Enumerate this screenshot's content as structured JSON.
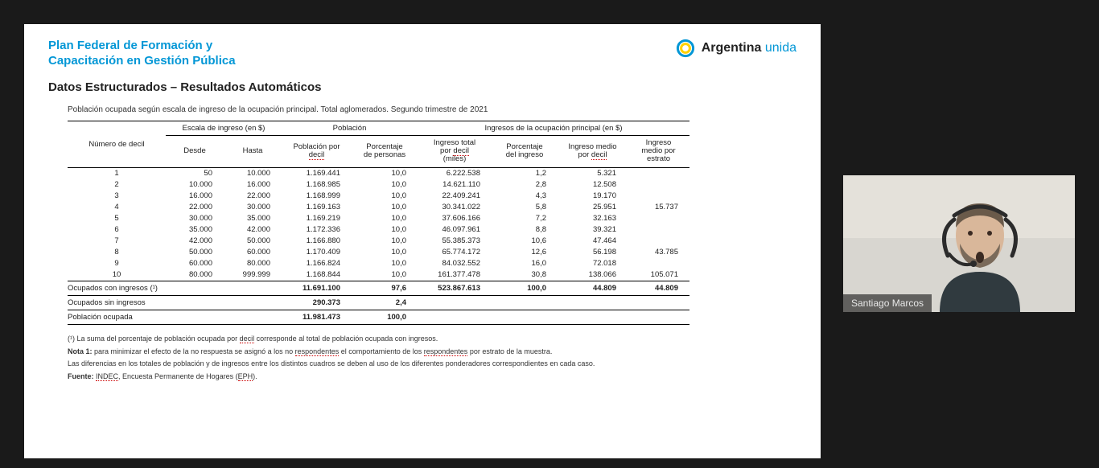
{
  "brand": {
    "left_line1": "Plan Federal de Formación y",
    "left_line2": "Capacitación en Gestión Pública",
    "right_label_strong": "Argentina",
    "right_label_light": "unida",
    "ring_outer": "#0397d6",
    "ring_inner": "#ffd100",
    "ring_core": "#ffffff"
  },
  "section_title": "Datos Estructurados – Resultados Automáticos",
  "table": {
    "caption": "Población ocupada según escala de ingreso de la ocupación principal. Total aglomerados. Segundo trimestre de 2021",
    "group_headers": {
      "g0": "Número de decil",
      "g1": "Escala de ingreso (en $)",
      "g2": "Población",
      "g3": "Ingresos de la ocupación principal (en $)"
    },
    "col_headers": {
      "c1": "Desde",
      "c2": "Hasta",
      "c3": "Población por decil",
      "c4": "Porcentaje de personas",
      "c5": "Ingreso total por decil (miles)",
      "c6": "Porcentaje del ingreso",
      "c7": "Ingreso medio por decil",
      "c8": "Ingreso medio por estrato"
    },
    "rows": [
      {
        "d": "1",
        "desde": "50",
        "hasta": "10.000",
        "pob": "1.169.441",
        "pct": "10,0",
        "ing_tot": "6.222.538",
        "pct_ing": "1,2",
        "ing_med": "5.321",
        "estrato": ""
      },
      {
        "d": "2",
        "desde": "10.000",
        "hasta": "16.000",
        "pob": "1.168.985",
        "pct": "10,0",
        "ing_tot": "14.621.110",
        "pct_ing": "2,8",
        "ing_med": "12.508",
        "estrato": ""
      },
      {
        "d": "3",
        "desde": "16.000",
        "hasta": "22.000",
        "pob": "1.168.999",
        "pct": "10,0",
        "ing_tot": "22.409.241",
        "pct_ing": "4,3",
        "ing_med": "19.170",
        "estrato": ""
      },
      {
        "d": "4",
        "desde": "22.000",
        "hasta": "30.000",
        "pob": "1.169.163",
        "pct": "10,0",
        "ing_tot": "30.341.022",
        "pct_ing": "5,8",
        "ing_med": "25.951",
        "estrato": "15.737"
      },
      {
        "d": "5",
        "desde": "30.000",
        "hasta": "35.000",
        "pob": "1.169.219",
        "pct": "10,0",
        "ing_tot": "37.606.166",
        "pct_ing": "7,2",
        "ing_med": "32.163",
        "estrato": ""
      },
      {
        "d": "6",
        "desde": "35.000",
        "hasta": "42.000",
        "pob": "1.172.336",
        "pct": "10,0",
        "ing_tot": "46.097.961",
        "pct_ing": "8,8",
        "ing_med": "39.321",
        "estrato": ""
      },
      {
        "d": "7",
        "desde": "42.000",
        "hasta": "50.000",
        "pob": "1.166.880",
        "pct": "10,0",
        "ing_tot": "55.385.373",
        "pct_ing": "10,6",
        "ing_med": "47.464",
        "estrato": ""
      },
      {
        "d": "8",
        "desde": "50.000",
        "hasta": "60.000",
        "pob": "1.170.409",
        "pct": "10,0",
        "ing_tot": "65.774.172",
        "pct_ing": "12,6",
        "ing_med": "56.198",
        "estrato": "43.785"
      },
      {
        "d": "9",
        "desde": "60.000",
        "hasta": "80.000",
        "pob": "1.166.824",
        "pct": "10,0",
        "ing_tot": "84.032.552",
        "pct_ing": "16,0",
        "ing_med": "72.018",
        "estrato": ""
      },
      {
        "d": "10",
        "desde": "80.000",
        "hasta": "999.999",
        "pob": "1.168.844",
        "pct": "10,0",
        "ing_tot": "161.377.478",
        "pct_ing": "30,8",
        "ing_med": "138.066",
        "estrato": "105.071"
      }
    ],
    "summaries": [
      {
        "label": "Ocupados con ingresos (¹)",
        "pob": "11.691.100",
        "pct": "97,6",
        "ing_tot": "523.867.613",
        "pct_ing": "100,0",
        "ing_med": "44.809",
        "estrato": "44.809"
      },
      {
        "label": "Ocupados sin ingresos",
        "pob": "290.373",
        "pct": "2,4",
        "ing_tot": "",
        "pct_ing": "",
        "ing_med": "",
        "estrato": ""
      },
      {
        "label": "Población ocupada",
        "pob": "11.981.473",
        "pct": "100,0",
        "ing_tot": "",
        "pct_ing": "",
        "ing_med": "",
        "estrato": ""
      }
    ]
  },
  "footnotes": {
    "n1": "(¹) La suma del porcentaje de población ocupada por decil corresponde al total de población ocupada con ingresos.",
    "n2a": "Nota 1:",
    "n2b": " para minimizar el efecto de la no respuesta se asignó a los no respondentes el comportamiento de los respondentes por estrato de la muestra.",
    "n3": "Las diferencias en los totales de población y de ingresos entre los distintos cuadros se deben al uso de los diferentes ponderadores correspondientes en cada caso.",
    "n4a": "Fuente:",
    "n4b": " INDEC, Encuesta Permanente de Hogares (EPH)."
  },
  "webcam": {
    "name": "Santiago Marcos",
    "skin": "#d9b79a",
    "beard": "#7a6a5a",
    "headset": "#2b2b2b",
    "shirt": "#303a3f"
  }
}
